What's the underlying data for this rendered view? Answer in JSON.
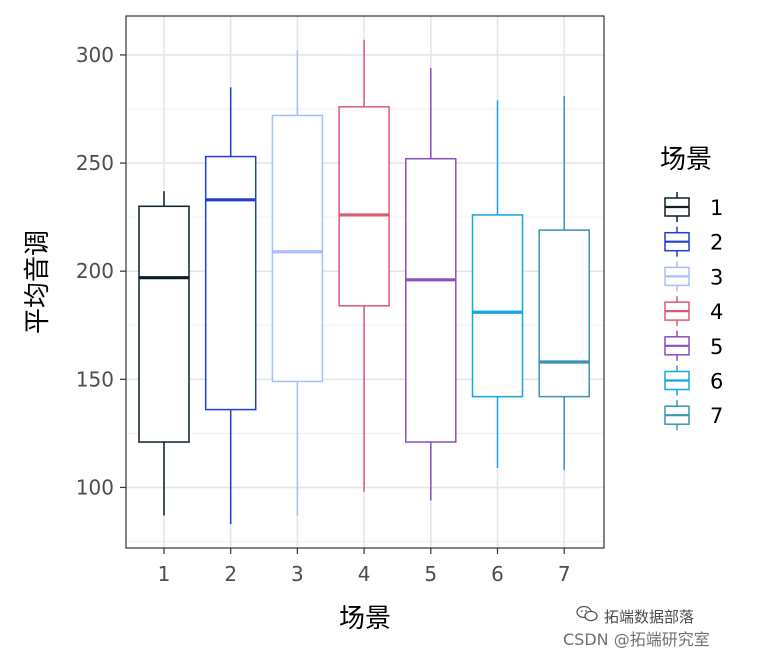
{
  "chart_data": {
    "type": "box",
    "xlabel": "场景",
    "ylabel": "平均音调",
    "categories": [
      "1",
      "2",
      "3",
      "4",
      "5",
      "6",
      "7"
    ],
    "ylim": [
      72,
      318
    ],
    "yticks": [
      100,
      150,
      200,
      250,
      300
    ],
    "grid": true,
    "legend": {
      "title": "场景",
      "position": "right",
      "entries": [
        "1",
        "2",
        "3",
        "4",
        "5",
        "6",
        "7"
      ]
    },
    "series": [
      {
        "category": "1",
        "color": "#0b1f2a",
        "min": 87,
        "q1": 121,
        "median": 197,
        "q3": 230,
        "max": 237
      },
      {
        "category": "2",
        "color": "#1f3fcf",
        "min": 83,
        "q1": 136,
        "median": 233,
        "q3": 253,
        "max": 285
      },
      {
        "category": "3",
        "color": "#a9bdf7",
        "min": 87,
        "q1": 149,
        "median": 209,
        "q3": 272,
        "max": 302
      },
      {
        "category": "4",
        "color": "#dc5a72",
        "min": 98,
        "q1": 184,
        "median": 226,
        "q3": 276,
        "max": 307
      },
      {
        "category": "5",
        "color": "#8a4fc0",
        "min": 94,
        "q1": 121,
        "median": 196,
        "q3": 252,
        "max": 294
      },
      {
        "category": "6",
        "color": "#13a6e6",
        "min": 109,
        "q1": 142,
        "median": 181,
        "q3": 226,
        "max": 279
      },
      {
        "category": "7",
        "color": "#3a93b5",
        "min": 108,
        "q1": 142,
        "median": 158,
        "q3": 219,
        "max": 281
      }
    ]
  },
  "watermark": {
    "line1": "拓端数据部落",
    "line2": "CSDN @拓端研究室"
  }
}
